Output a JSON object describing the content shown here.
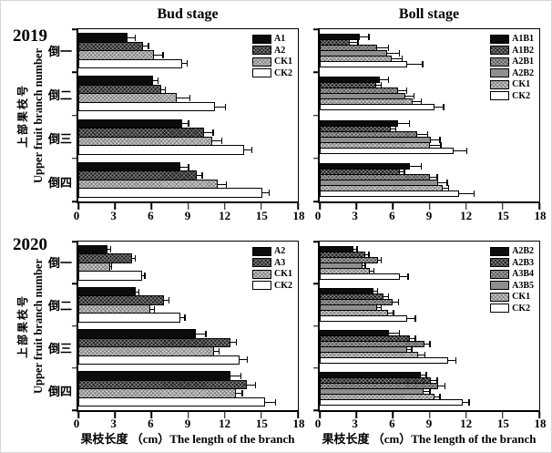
{
  "figure": {
    "column_titles": [
      "Bud stage",
      "Boll stage"
    ],
    "row_years": [
      "2019",
      "2020"
    ],
    "y_axis_label_zh": "上部果枝号",
    "y_axis_label_en": "Upper fruit branch number",
    "x_axis_caption": "果枝长度 （cm）The length of the branch",
    "colors": {
      "bar_outline": "#000000",
      "background": "#ffffff",
      "solid_black": "#0b0b0b",
      "dark_hatch": "#1e1e1e",
      "mid_hatch": "#585858",
      "solid_gray": "#8f8f8f",
      "light_hatch": "#c9c9c9",
      "white": "#ffffff"
    }
  },
  "chart_data": [
    {
      "id": "bud-2019",
      "type": "bar",
      "orientation": "horizontal",
      "title": "Bud stage",
      "year": "2019",
      "categories": [
        "倒一",
        "倒二",
        "倒三",
        "倒四"
      ],
      "xlim": [
        0,
        18
      ],
      "xticks": [
        0,
        3,
        6,
        9,
        12,
        15,
        18
      ],
      "grid": false,
      "legend_position": "top-right",
      "series": [
        {
          "name": "A1",
          "pattern": "solid-black",
          "values": [
            4.0,
            6.1,
            8.5,
            8.4
          ],
          "errors": [
            0.7,
            0.5,
            0.6,
            0.7
          ]
        },
        {
          "name": "A2",
          "pattern": "dark-hatch",
          "values": [
            5.3,
            6.8,
            10.3,
            9.7
          ],
          "errors": [
            0.5,
            0.4,
            0.8,
            0.5
          ]
        },
        {
          "name": "CK1",
          "pattern": "light-hatch",
          "values": [
            6.2,
            8.1,
            11.0,
            11.4
          ],
          "errors": [
            0.8,
            1.1,
            0.8,
            0.8
          ]
        },
        {
          "name": "CK2",
          "pattern": "white",
          "values": [
            8.5,
            11.2,
            13.6,
            15.1
          ],
          "errors": [
            0.5,
            0.9,
            0.7,
            0.6
          ]
        }
      ]
    },
    {
      "id": "boll-2019",
      "type": "bar",
      "orientation": "horizontal",
      "title": "Boll stage",
      "year": "2019",
      "categories": [
        "倒一",
        "倒二",
        "倒三",
        "倒四"
      ],
      "xlim": [
        0,
        18
      ],
      "xticks": [
        0,
        3,
        6,
        9,
        12,
        15,
        18
      ],
      "grid": false,
      "legend_position": "top-right",
      "series": [
        {
          "name": "A1B1",
          "pattern": "solid-black",
          "values": [
            3.3,
            4.9,
            6.4,
            7.4
          ],
          "errors": [
            0.8,
            0.8,
            1.0,
            1.0
          ]
        },
        {
          "name": "A1B2",
          "pattern": "dark-hatch",
          "values": [
            2.5,
            4.6,
            5.8,
            6.6
          ],
          "errors": [
            0.7,
            0.5,
            0.5,
            0.4
          ]
        },
        {
          "name": "A2B1",
          "pattern": "mid-hatch",
          "values": [
            4.7,
            6.4,
            8.0,
            9.0
          ],
          "errors": [
            1.0,
            0.8,
            0.9,
            0.7
          ]
        },
        {
          "name": "A2B2",
          "pattern": "solid-gray",
          "values": [
            5.5,
            7.0,
            9.1,
            9.7
          ],
          "errors": [
            1.1,
            0.8,
            0.8,
            0.8
          ]
        },
        {
          "name": "CK1",
          "pattern": "light-hatch",
          "values": [
            5.9,
            7.6,
            9.0,
            10.1
          ],
          "errors": [
            0.9,
            0.8,
            1.0,
            0.5
          ]
        },
        {
          "name": "CK2",
          "pattern": "white",
          "values": [
            7.2,
            9.4,
            11.0,
            11.4
          ],
          "errors": [
            1.3,
            0.8,
            1.1,
            1.3
          ]
        }
      ]
    },
    {
      "id": "bud-2020",
      "type": "bar",
      "orientation": "horizontal",
      "title": "Bud stage",
      "year": "2020",
      "categories": [
        "倒一",
        "倒二",
        "倒三",
        "倒四"
      ],
      "xlim": [
        0,
        18
      ],
      "xticks": [
        0,
        3,
        6,
        9,
        12,
        15,
        18
      ],
      "grid": false,
      "legend_position": "top-right",
      "series": [
        {
          "name": "A2",
          "pattern": "solid-black",
          "values": [
            2.4,
            4.7,
            9.6,
            12.5
          ],
          "errors": [
            0.3,
            0.3,
            0.9,
            0.9
          ]
        },
        {
          "name": "A3",
          "pattern": "dark-hatch",
          "values": [
            4.4,
            7.0,
            12.5,
            13.8
          ],
          "errors": [
            0.3,
            0.5,
            0.5,
            0.8
          ]
        },
        {
          "name": "CK1",
          "pattern": "light-hatch",
          "values": [
            2.6,
            5.9,
            11.1,
            12.9
          ],
          "errors": [
            0.2,
            0.4,
            0.5,
            0.6
          ]
        },
        {
          "name": "CK2",
          "pattern": "white",
          "values": [
            5.2,
            8.4,
            13.2,
            15.3
          ],
          "errors": [
            0.3,
            0.4,
            0.7,
            0.9
          ]
        }
      ]
    },
    {
      "id": "boll-2020",
      "type": "bar",
      "orientation": "horizontal",
      "title": "Boll stage",
      "year": "2020",
      "categories": [
        "倒一",
        "倒二",
        "倒三",
        "倒四"
      ],
      "xlim": [
        0,
        18
      ],
      "xticks": [
        0,
        3,
        6,
        9,
        12,
        15,
        18
      ],
      "grid": false,
      "legend_position": "top-right",
      "series": [
        {
          "name": "A2B2",
          "pattern": "solid-black",
          "values": [
            2.8,
            4.4,
            5.7,
            8.3
          ],
          "errors": [
            0.3,
            0.4,
            0.9,
            0.5
          ]
        },
        {
          "name": "A2B3",
          "pattern": "dark-hatch",
          "values": [
            3.7,
            5.2,
            7.4,
            9.1
          ],
          "errors": [
            0.4,
            0.5,
            0.5,
            0.6
          ]
        },
        {
          "name": "A3B4",
          "pattern": "mid-hatch",
          "values": [
            4.8,
            6.0,
            8.6,
            9.7
          ],
          "errors": [
            0.3,
            0.5,
            0.5,
            0.6
          ]
        },
        {
          "name": "A3B5",
          "pattern": "solid-gray",
          "values": [
            3.5,
            4.7,
            7.2,
            8.5
          ],
          "errors": [
            0.3,
            0.4,
            0.4,
            0.6
          ]
        },
        {
          "name": "CK1",
          "pattern": "light-hatch",
          "values": [
            4.1,
            5.6,
            8.1,
            9.4
          ],
          "errors": [
            0.4,
            0.5,
            0.6,
            0.5
          ]
        },
        {
          "name": "CK2",
          "pattern": "white",
          "values": [
            6.6,
            7.2,
            10.5,
            11.7
          ],
          "errors": [
            0.7,
            0.7,
            0.7,
            0.6
          ]
        }
      ]
    }
  ]
}
